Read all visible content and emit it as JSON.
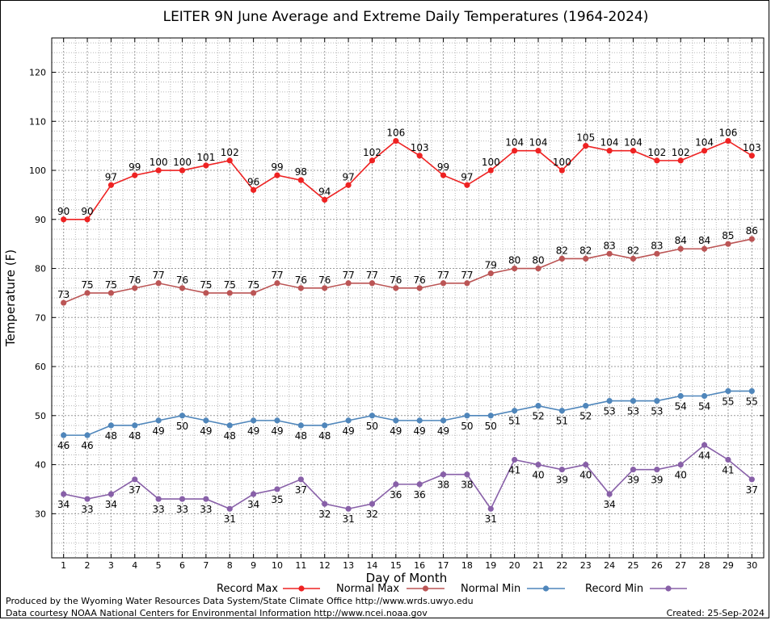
{
  "chart_data": {
    "type": "line",
    "title": "LEITER 9N June Average and Extreme Daily Temperatures (1964-2024)",
    "xlabel": "Day of Month",
    "ylabel": "Temperature (F)",
    "xlim": [
      0.5,
      30.5
    ],
    "ylim": [
      21,
      127
    ],
    "yticks": [
      30,
      40,
      50,
      60,
      70,
      80,
      90,
      100,
      110,
      120
    ],
    "x": [
      1,
      2,
      3,
      4,
      5,
      6,
      7,
      8,
      9,
      10,
      11,
      12,
      13,
      14,
      15,
      16,
      17,
      18,
      19,
      20,
      21,
      22,
      23,
      24,
      25,
      26,
      27,
      28,
      29,
      30
    ],
    "grid": true,
    "legend_position": "bottom",
    "series": [
      {
        "name": "Record Max",
        "color": "#ee2222",
        "label_position": "above",
        "values": [
          90,
          90,
          97,
          99,
          100,
          100,
          101,
          102,
          96,
          99,
          98,
          94,
          97,
          102,
          106,
          103,
          99,
          97,
          100,
          104,
          104,
          100,
          105,
          104,
          104,
          102,
          102,
          104,
          106,
          103
        ]
      },
      {
        "name": "Normal Max",
        "color": "#bb5555",
        "label_position": "above",
        "values": [
          73,
          75,
          75,
          76,
          77,
          76,
          75,
          75,
          75,
          77,
          76,
          76,
          77,
          77,
          76,
          76,
          77,
          77,
          79,
          80,
          80,
          82,
          82,
          83,
          82,
          83,
          84,
          84,
          85,
          86
        ]
      },
      {
        "name": "Normal Min",
        "color": "#4f86bb",
        "label_position": "below",
        "values": [
          46,
          46,
          48,
          48,
          49,
          50,
          49,
          48,
          49,
          49,
          48,
          48,
          49,
          50,
          49,
          49,
          49,
          50,
          50,
          51,
          52,
          51,
          52,
          53,
          53,
          53,
          54,
          54,
          55,
          55
        ]
      },
      {
        "name": "Record Min",
        "color": "#8860a8",
        "label_position": "below",
        "values": [
          34,
          33,
          34,
          37,
          33,
          33,
          33,
          31,
          34,
          35,
          37,
          32,
          31,
          32,
          36,
          36,
          38,
          38,
          31,
          41,
          40,
          39,
          40,
          34,
          39,
          39,
          40,
          44,
          41,
          37
        ]
      }
    ]
  },
  "footer": {
    "producer": "Produced by the Wyoming Water Resources Data System/State Climate Office http://www.wrds.uwyo.edu",
    "courtesy": "Data courtesy NOAA National Centers for Environmental Information http://www.ncei.noaa.gov",
    "created": "Created:  25-Sep-2024"
  }
}
